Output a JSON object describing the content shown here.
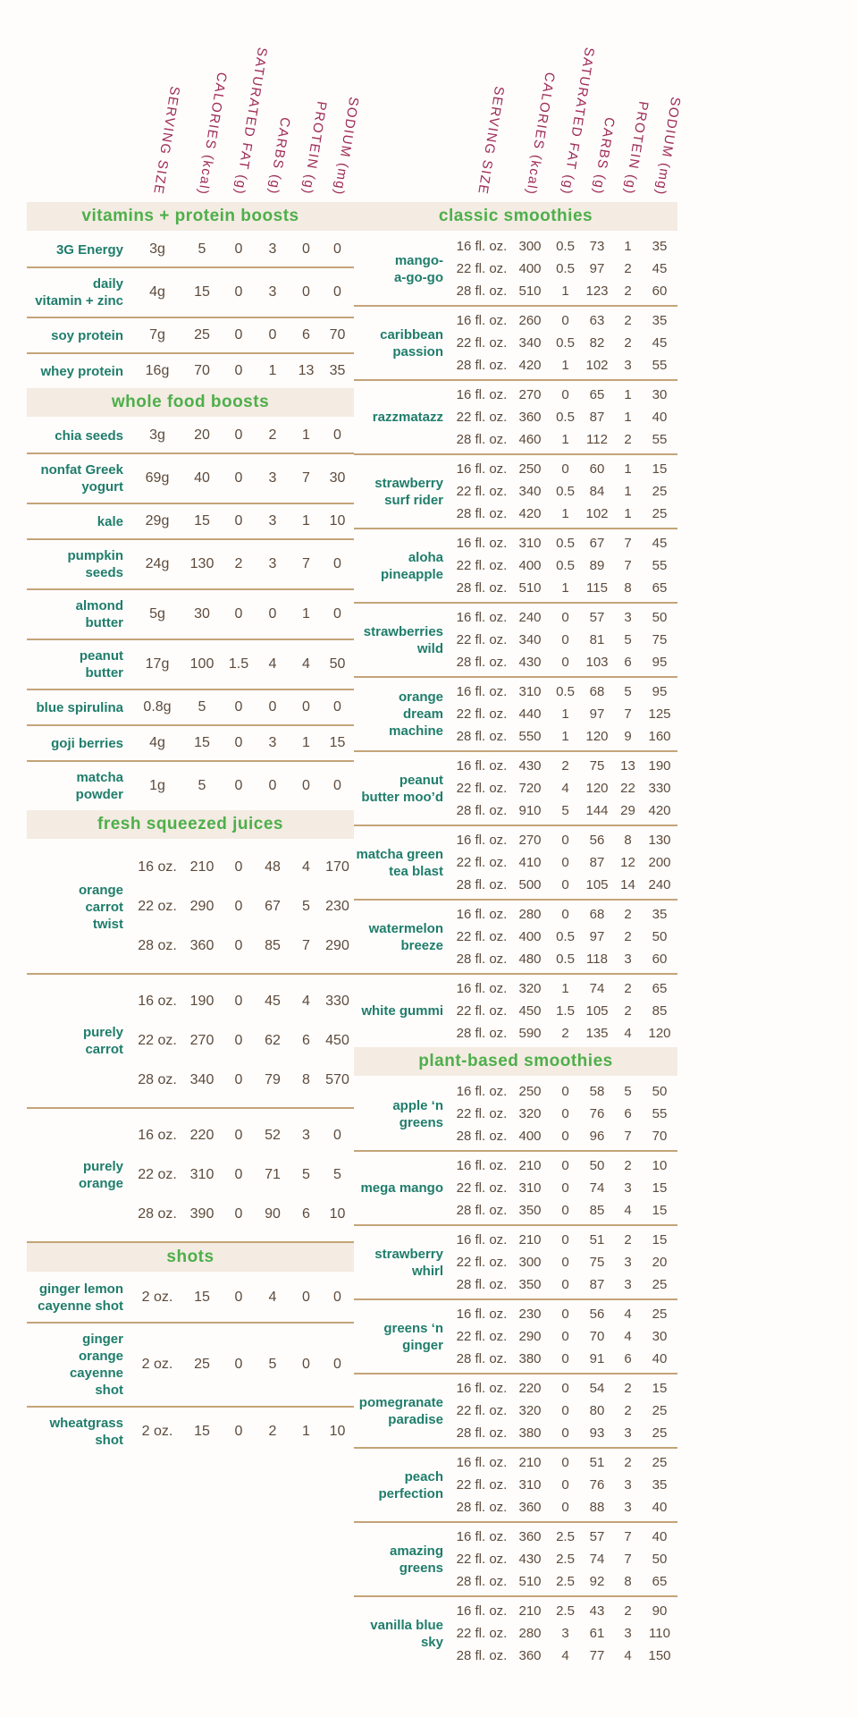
{
  "columns": [
    "SERVING SIZE",
    "CALORIES (kcal)",
    "SATURATED FAT (g)",
    "CARBS (g)",
    "PROTEIN (g)",
    "SODIUM (mg)"
  ],
  "colors": {
    "section_title_green": "#4daf4a",
    "item_label_teal": "#1f7d6b",
    "value_brown": "#5d4a3b",
    "column_header_maroon": "#9e2a56",
    "section_bar_background": "#f4ebe2",
    "divider_tan": "#c4a478"
  },
  "left_sections": [
    {
      "id": "vitamins-protein-boosts",
      "title": "vitamins + protein boosts",
      "items": [
        {
          "name": "3G Energy",
          "rows": [
            [
              "3g",
              "5",
              "0",
              "3",
              "0",
              "0"
            ]
          ]
        },
        {
          "name": "daily\nvitamin + zinc",
          "rows": [
            [
              "4g",
              "15",
              "0",
              "3",
              "0",
              "0"
            ]
          ]
        },
        {
          "name": "soy protein",
          "rows": [
            [
              "7g",
              "25",
              "0",
              "0",
              "6",
              "70"
            ]
          ]
        },
        {
          "name": "whey protein",
          "rows": [
            [
              "16g",
              "70",
              "0",
              "1",
              "13",
              "35"
            ]
          ]
        }
      ]
    },
    {
      "id": "whole-food-boosts",
      "title": "whole food boosts",
      "items": [
        {
          "name": "chia seeds",
          "rows": [
            [
              "3g",
              "20",
              "0",
              "2",
              "1",
              "0"
            ]
          ]
        },
        {
          "name": "nonfat Greek\nyogurt",
          "rows": [
            [
              "69g",
              "40",
              "0",
              "3",
              "7",
              "30"
            ]
          ]
        },
        {
          "name": "kale",
          "rows": [
            [
              "29g",
              "15",
              "0",
              "3",
              "1",
              "10"
            ]
          ]
        },
        {
          "name": "pumpkin\nseeds",
          "rows": [
            [
              "24g",
              "130",
              "2",
              "3",
              "7",
              "0"
            ]
          ]
        },
        {
          "name": "almond\nbutter",
          "rows": [
            [
              "5g",
              "30",
              "0",
              "0",
              "1",
              "0"
            ]
          ]
        },
        {
          "name": "peanut\nbutter",
          "rows": [
            [
              "17g",
              "100",
              "1.5",
              "4",
              "4",
              "50"
            ]
          ]
        },
        {
          "name": "blue spirulina",
          "rows": [
            [
              "0.8g",
              "5",
              "0",
              "0",
              "0",
              "0"
            ]
          ]
        },
        {
          "name": "goji berries",
          "rows": [
            [
              "4g",
              "15",
              "0",
              "3",
              "1",
              "15"
            ]
          ]
        },
        {
          "name": "matcha\npowder",
          "rows": [
            [
              "1g",
              "5",
              "0",
              "0",
              "0",
              "0"
            ]
          ]
        }
      ]
    },
    {
      "id": "fresh-squeezed-juices",
      "title": "fresh squeezed juices",
      "items": [
        {
          "name": "orange\ncarrot\ntwist",
          "rows": [
            [
              "16 oz.",
              "210",
              "0",
              "48",
              "4",
              "170"
            ],
            [
              "22 oz.",
              "290",
              "0",
              "67",
              "5",
              "230"
            ],
            [
              "28 oz.",
              "360",
              "0",
              "85",
              "7",
              "290"
            ]
          ]
        },
        {
          "name": "purely\ncarrot",
          "rows": [
            [
              "16 oz.",
              "190",
              "0",
              "45",
              "4",
              "330"
            ],
            [
              "22 oz.",
              "270",
              "0",
              "62",
              "6",
              "450"
            ],
            [
              "28 oz.",
              "340",
              "0",
              "79",
              "8",
              "570"
            ]
          ]
        },
        {
          "name": "purely\norange",
          "rows": [
            [
              "16 oz.",
              "220",
              "0",
              "52",
              "3",
              "0"
            ],
            [
              "22 oz.",
              "310",
              "0",
              "71",
              "5",
              "5"
            ],
            [
              "28 oz.",
              "390",
              "0",
              "90",
              "6",
              "10"
            ]
          ]
        }
      ]
    },
    {
      "id": "shots",
      "title": "shots",
      "items": [
        {
          "name": "ginger lemon\ncayenne shot",
          "rows": [
            [
              "2 oz.",
              "15",
              "0",
              "4",
              "0",
              "0"
            ]
          ]
        },
        {
          "name": "ginger\norange\ncayenne\nshot",
          "rows": [
            [
              "2 oz.",
              "25",
              "0",
              "5",
              "0",
              "0"
            ]
          ]
        },
        {
          "name": "wheatgrass\nshot",
          "rows": [
            [
              "2 oz.",
              "15",
              "0",
              "2",
              "1",
              "10"
            ]
          ]
        }
      ]
    }
  ],
  "right_sections": [
    {
      "id": "classic-smoothies",
      "title": "classic smoothies",
      "items": [
        {
          "name": "mango-\na-go-go",
          "rows": [
            [
              "16 fl. oz.",
              "300",
              "0.5",
              "73",
              "1",
              "35"
            ],
            [
              "22 fl. oz.",
              "400",
              "0.5",
              "97",
              "2",
              "45"
            ],
            [
              "28 fl. oz.",
              "510",
              "1",
              "123",
              "2",
              "60"
            ]
          ]
        },
        {
          "name": "caribbean\npassion",
          "rows": [
            [
              "16 fl. oz.",
              "260",
              "0",
              "63",
              "2",
              "35"
            ],
            [
              "22 fl. oz.",
              "340",
              "0.5",
              "82",
              "2",
              "45"
            ],
            [
              "28 fl. oz.",
              "420",
              "1",
              "102",
              "3",
              "55"
            ]
          ]
        },
        {
          "name": "razzmatazz",
          "rows": [
            [
              "16 fl. oz.",
              "270",
              "0",
              "65",
              "1",
              "30"
            ],
            [
              "22 fl. oz.",
              "360",
              "0.5",
              "87",
              "1",
              "40"
            ],
            [
              "28 fl. oz.",
              "460",
              "1",
              "112",
              "2",
              "55"
            ]
          ]
        },
        {
          "name": "strawberry\nsurf rider",
          "rows": [
            [
              "16 fl. oz.",
              "250",
              "0",
              "60",
              "1",
              "15"
            ],
            [
              "22 fl. oz.",
              "340",
              "0.5",
              "84",
              "1",
              "25"
            ],
            [
              "28 fl. oz.",
              "420",
              "1",
              "102",
              "1",
              "25"
            ]
          ]
        },
        {
          "name": "aloha\npineapple",
          "rows": [
            [
              "16 fl. oz.",
              "310",
              "0.5",
              "67",
              "7",
              "45"
            ],
            [
              "22 fl. oz.",
              "400",
              "0.5",
              "89",
              "7",
              "55"
            ],
            [
              "28 fl. oz.",
              "510",
              "1",
              "115",
              "8",
              "65"
            ]
          ]
        },
        {
          "name": "strawberries\nwild",
          "rows": [
            [
              "16 fl. oz.",
              "240",
              "0",
              "57",
              "3",
              "50"
            ],
            [
              "22 fl. oz.",
              "340",
              "0",
              "81",
              "5",
              "75"
            ],
            [
              "28 fl. oz.",
              "430",
              "0",
              "103",
              "6",
              "95"
            ]
          ]
        },
        {
          "name": "orange\ndream\nmachine",
          "rows": [
            [
              "16 fl. oz.",
              "310",
              "0.5",
              "68",
              "5",
              "95"
            ],
            [
              "22 fl. oz.",
              "440",
              "1",
              "97",
              "7",
              "125"
            ],
            [
              "28 fl. oz.",
              "550",
              "1",
              "120",
              "9",
              "160"
            ]
          ]
        },
        {
          "name": "peanut\nbutter moo’d",
          "rows": [
            [
              "16 fl. oz.",
              "430",
              "2",
              "75",
              "13",
              "190"
            ],
            [
              "22 fl. oz.",
              "720",
              "4",
              "120",
              "22",
              "330"
            ],
            [
              "28 fl. oz.",
              "910",
              "5",
              "144",
              "29",
              "420"
            ]
          ]
        },
        {
          "name": "matcha green\ntea blast",
          "rows": [
            [
              "16 fl. oz.",
              "270",
              "0",
              "56",
              "8",
              "130"
            ],
            [
              "22 fl. oz.",
              "410",
              "0",
              "87",
              "12",
              "200"
            ],
            [
              "28 fl. oz.",
              "500",
              "0",
              "105",
              "14",
              "240"
            ]
          ]
        },
        {
          "name": "watermelon\nbreeze",
          "rows": [
            [
              "16 fl. oz.",
              "280",
              "0",
              "68",
              "2",
              "35"
            ],
            [
              "22 fl. oz.",
              "400",
              "0.5",
              "97",
              "2",
              "50"
            ],
            [
              "28 fl. oz.",
              "480",
              "0.5",
              "118",
              "3",
              "60"
            ]
          ]
        },
        {
          "name": "white gummi",
          "rows": [
            [
              "16 fl. oz.",
              "320",
              "1",
              "74",
              "2",
              "65"
            ],
            [
              "22 fl. oz.",
              "450",
              "1.5",
              "105",
              "2",
              "85"
            ],
            [
              "28 fl. oz.",
              "590",
              "2",
              "135",
              "4",
              "120"
            ]
          ]
        }
      ]
    },
    {
      "id": "plant-based-smoothies",
      "title": "plant-based smoothies",
      "items": [
        {
          "name": "apple ‘n\ngreens",
          "rows": [
            [
              "16 fl. oz.",
              "250",
              "0",
              "58",
              "5",
              "50"
            ],
            [
              "22 fl. oz.",
              "320",
              "0",
              "76",
              "6",
              "55"
            ],
            [
              "28 fl. oz.",
              "400",
              "0",
              "96",
              "7",
              "70"
            ]
          ]
        },
        {
          "name": "mega mango",
          "rows": [
            [
              "16 fl. oz.",
              "210",
              "0",
              "50",
              "2",
              "10"
            ],
            [
              "22 fl. oz.",
              "310",
              "0",
              "74",
              "3",
              "15"
            ],
            [
              "28 fl. oz.",
              "350",
              "0",
              "85",
              "4",
              "15"
            ]
          ]
        },
        {
          "name": "strawberry\nwhirl",
          "rows": [
            [
              "16 fl. oz.",
              "210",
              "0",
              "51",
              "2",
              "15"
            ],
            [
              "22 fl. oz.",
              "300",
              "0",
              "75",
              "3",
              "20"
            ],
            [
              "28 fl. oz.",
              "350",
              "0",
              "87",
              "3",
              "25"
            ]
          ]
        },
        {
          "name": "greens ‘n\nginger",
          "rows": [
            [
              "16 fl. oz.",
              "230",
              "0",
              "56",
              "4",
              "25"
            ],
            [
              "22 fl. oz.",
              "290",
              "0",
              "70",
              "4",
              "30"
            ],
            [
              "28 fl. oz.",
              "380",
              "0",
              "91",
              "6",
              "40"
            ]
          ]
        },
        {
          "name": "pomegranate\nparadise",
          "rows": [
            [
              "16 fl. oz.",
              "220",
              "0",
              "54",
              "2",
              "15"
            ],
            [
              "22 fl. oz.",
              "320",
              "0",
              "80",
              "2",
              "25"
            ],
            [
              "28 fl. oz.",
              "380",
              "0",
              "93",
              "3",
              "25"
            ]
          ]
        },
        {
          "name": "peach\nperfection",
          "rows": [
            [
              "16 fl. oz.",
              "210",
              "0",
              "51",
              "2",
              "25"
            ],
            [
              "22 fl. oz.",
              "310",
              "0",
              "76",
              "3",
              "35"
            ],
            [
              "28 fl. oz.",
              "360",
              "0",
              "88",
              "3",
              "40"
            ]
          ]
        },
        {
          "name": "amazing\ngreens",
          "rows": [
            [
              "16 fl. oz.",
              "360",
              "2.5",
              "57",
              "7",
              "40"
            ],
            [
              "22 fl. oz.",
              "430",
              "2.5",
              "74",
              "7",
              "50"
            ],
            [
              "28 fl. oz.",
              "510",
              "2.5",
              "92",
              "8",
              "65"
            ]
          ]
        },
        {
          "name": "vanilla blue\nsky",
          "rows": [
            [
              "16 fl. oz.",
              "210",
              "2.5",
              "43",
              "2",
              "90"
            ],
            [
              "22 fl. oz.",
              "280",
              "3",
              "61",
              "3",
              "110"
            ],
            [
              "28 fl. oz.",
              "360",
              "4",
              "77",
              "4",
              "150"
            ]
          ]
        }
      ]
    }
  ]
}
